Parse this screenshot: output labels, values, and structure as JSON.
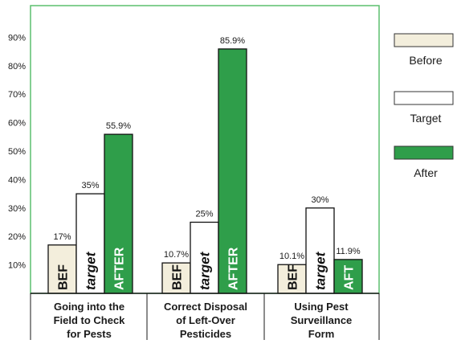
{
  "chart_data": {
    "type": "bar",
    "ylim": [
      0,
      100
    ],
    "yticks": [
      10,
      20,
      30,
      40,
      50,
      60,
      70,
      80,
      90
    ],
    "ytick_suffix": "%",
    "grid": false,
    "legend_position": "right",
    "categories": [
      [
        "Going into the",
        "Field to Check",
        "for Pests"
      ],
      [
        "Correct Disposal",
        "of Left-Over",
        "Pesticides"
      ],
      [
        "Using Pest",
        "Surveillance",
        "Form"
      ]
    ],
    "series": [
      {
        "name": "Before",
        "values": [
          17,
          10.7,
          10.1
        ],
        "value_labels": [
          "17%",
          "10.7%",
          "10.1%"
        ],
        "bar_text": [
          "BEF",
          "BEF",
          "BEF"
        ],
        "color": "#f3eedc"
      },
      {
        "name": "Target",
        "values": [
          35,
          25,
          30
        ],
        "value_labels": [
          "35%",
          "25%",
          "30%"
        ],
        "bar_text": [
          "target",
          "target",
          "target"
        ],
        "color": "#ffffff"
      },
      {
        "name": "After",
        "values": [
          55.9,
          85.9,
          11.9
        ],
        "value_labels": [
          "55.9%",
          "85.9%",
          "11.9%"
        ],
        "bar_text": [
          "AFTER",
          "AFTER",
          "AFT"
        ],
        "color": "#2f9e4a"
      }
    ],
    "colors": {
      "frame": "#5cbf6e",
      "axis": "#1a1a1a",
      "text": "#1a1a1a"
    }
  }
}
